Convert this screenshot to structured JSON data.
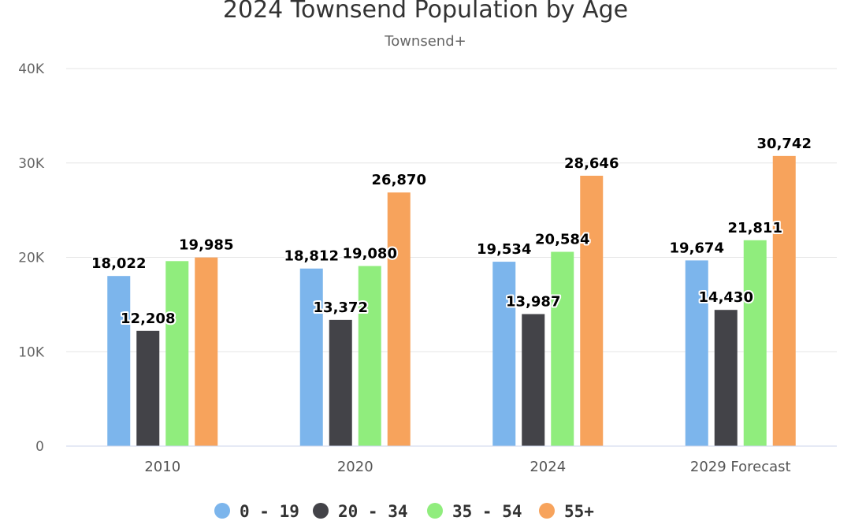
{
  "chart_data": {
    "type": "bar",
    "title": "2024 Townsend Population by Age",
    "subtitle": "Townsend+",
    "categories": [
      "2010",
      "2020",
      "2024",
      "2029 Forecast"
    ],
    "series": [
      {
        "name": "0 - 19",
        "color": "#7cb5ec",
        "values": [
          18022,
          18812,
          19534,
          19674
        ],
        "labels": [
          "18,022",
          "18,812",
          "19,534",
          "19,674"
        ]
      },
      {
        "name": "20 - 34",
        "color": "#434348",
        "values": [
          12208,
          13372,
          13987,
          14430
        ],
        "labels": [
          "12,208",
          "13,372",
          "13,987",
          "14,430"
        ]
      },
      {
        "name": "35 - 54",
        "color": "#90ed7d",
        "values": [
          19600,
          19080,
          20584,
          21811
        ],
        "labels": [
          "",
          "19,080",
          "20,584",
          "21,811"
        ]
      },
      {
        "name": "55+",
        "color": "#f7a35c",
        "values": [
          19985,
          26870,
          28646,
          30742
        ],
        "labels": [
          "19,985",
          "26,870",
          "28,646",
          "30,742"
        ]
      }
    ],
    "y_ticks": [
      {
        "value": 0,
        "label": "0"
      },
      {
        "value": 10000,
        "label": "10K"
      },
      {
        "value": 20000,
        "label": "20K"
      },
      {
        "value": 30000,
        "label": "30K"
      },
      {
        "value": 40000,
        "label": "40K"
      }
    ],
    "ylim": [
      0,
      40000
    ],
    "xlabel": "",
    "ylabel": "",
    "grid": true,
    "legend_position": "bottom-center"
  }
}
